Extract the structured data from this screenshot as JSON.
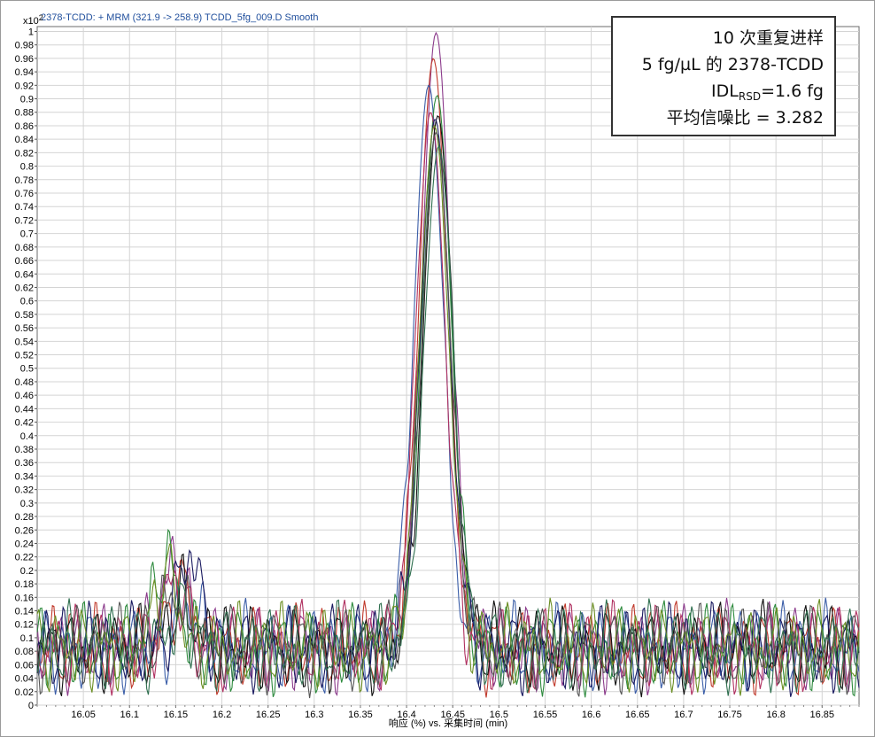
{
  "chart_data": {
    "type": "line",
    "header": "2378-TCDD: + MRM (321.9 -> 258.9) TCDD_5fg_009.D  Smooth",
    "y_multiplier": "x10",
    "y_multiplier_exp": "2",
    "xlabel": "响应 (%) vs. 采集时间 (min)",
    "xlim": [
      16.0,
      16.89
    ],
    "ylim": [
      0,
      1.0
    ],
    "x_ticks": [
      "16.05",
      "16.1",
      "16.15",
      "16.2",
      "16.25",
      "16.3",
      "16.35",
      "16.4",
      "16.45",
      "16.5",
      "16.55",
      "16.6",
      "16.65",
      "16.7",
      "16.75",
      "16.8",
      "16.85"
    ],
    "y_ticks": [
      "0",
      "0.02",
      "0.04",
      "0.06",
      "0.08",
      "0.1",
      "0.12",
      "0.14",
      "0.16",
      "0.18",
      "0.2",
      "0.22",
      "0.24",
      "0.26",
      "0.28",
      "0.3",
      "0.32",
      "0.34",
      "0.36",
      "0.38",
      "0.4",
      "0.42",
      "0.44",
      "0.46",
      "0.48",
      "0.5",
      "0.52",
      "0.54",
      "0.56",
      "0.58",
      "0.6",
      "0.62",
      "0.64",
      "0.66",
      "0.68",
      "0.7",
      "0.72",
      "0.74",
      "0.76",
      "0.78",
      "0.8",
      "0.82",
      "0.84",
      "0.86",
      "0.88",
      "0.9",
      "0.92",
      "0.94",
      "0.96",
      "0.98",
      "1"
    ],
    "grid": true,
    "legend_position": "top-right",
    "peak": {
      "center": 16.43,
      "width": 0.022
    },
    "series": [
      {
        "color": "#8b3a8b",
        "apex": 0.998,
        "shift": 0.002,
        "seed": 1
      },
      {
        "color": "#c0392b",
        "apex": 0.96,
        "shift": -0.001,
        "seed": 2
      },
      {
        "color": "#3b5ea8",
        "apex": 0.92,
        "shift": -0.006,
        "seed": 3
      },
      {
        "color": "#2e8b3e",
        "apex": 0.905,
        "shift": 0.003,
        "seed": 4
      },
      {
        "color": "#b03060",
        "apex": 0.88,
        "shift": -0.004,
        "seed": 5
      },
      {
        "color": "#111111",
        "apex": 0.875,
        "shift": 0.004,
        "seed": 6
      },
      {
        "color": "#1a1a60",
        "apex": 0.87,
        "shift": 0.001,
        "seed": 7
      },
      {
        "color": "#6b8e23",
        "apex": 0.86,
        "shift": 0.0,
        "seed": 8
      },
      {
        "color": "#555555",
        "apex": 0.85,
        "shift": 0.002,
        "seed": 9
      },
      {
        "color": "#2f6f4f",
        "apex": 0.83,
        "shift": 0.005,
        "seed": 10
      }
    ]
  },
  "annotation": {
    "line1": "10 次重复进样",
    "line2": "5 fg/µL 的 2378-TCDD",
    "line3_main": "IDL",
    "line3_sub": "RSD",
    "line3_rest": "=1.6 fg",
    "line4": "平均信噪比 = 3.282"
  }
}
